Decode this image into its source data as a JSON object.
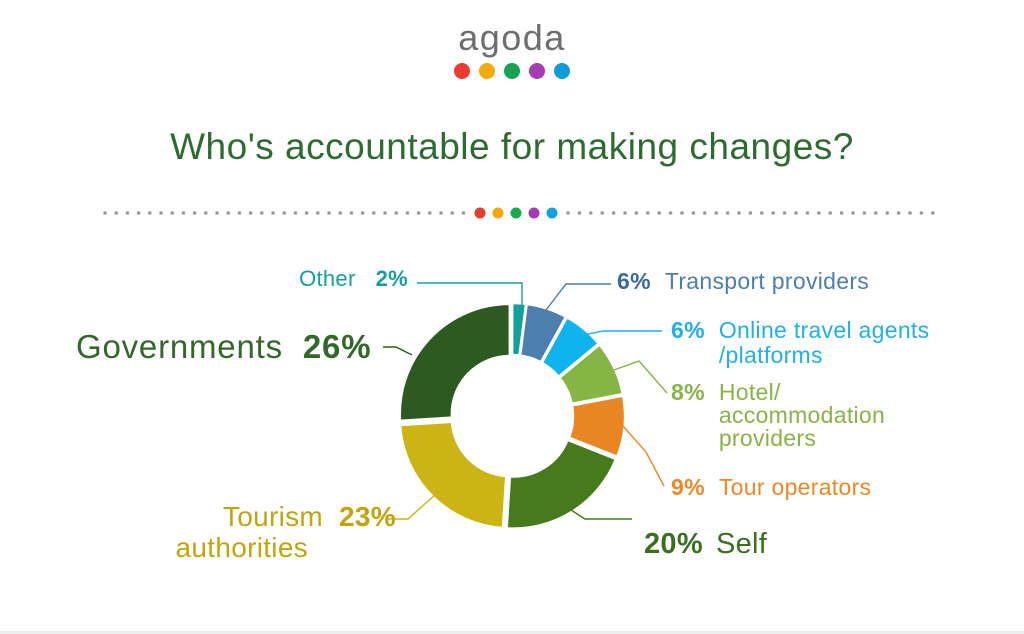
{
  "logo": {
    "text": "agoda",
    "dot_colors": [
      "#ee3b30",
      "#f6a90a",
      "#16a452",
      "#a43cb4",
      "#0c9cd8"
    ]
  },
  "title": "Who's accountable for making changes?",
  "divider": {
    "gray_color": "#9b9b9b",
    "accent_colors": [
      "#e93a2e",
      "#f5a80c",
      "#16a94e",
      "#a63ab2",
      "#12a3dc"
    ]
  },
  "chart_data": {
    "type": "pie",
    "subtype": "donut",
    "title": "Who's accountable for making changes?",
    "unit": "%",
    "start_angle_deg": 0,
    "direction": "clockwise",
    "inner_radius_ratio": 0.53,
    "segments": [
      {
        "id": "other",
        "label": "Other",
        "value": 2,
        "color": "#16a09a"
      },
      {
        "id": "transport",
        "label": "Transport providers",
        "value": 6,
        "color": "#4d7fae"
      },
      {
        "id": "online",
        "label": "Online travel agents/platforms",
        "value": 6,
        "color": "#0fb4ee"
      },
      {
        "id": "hotel",
        "label": "Hotel/accommodation providers",
        "value": 8,
        "color": "#86b445"
      },
      {
        "id": "tour",
        "label": "Tour operators",
        "value": 9,
        "color": "#e98624"
      },
      {
        "id": "self",
        "label": "Self",
        "value": 20,
        "color": "#47791d"
      },
      {
        "id": "tourism",
        "label": "Tourism authorities",
        "value": 23,
        "color": "#ccb414"
      },
      {
        "id": "governments",
        "label": "Governments",
        "value": 26,
        "color": "#2d5a20"
      }
    ]
  },
  "callouts": {
    "other": {
      "name": "Other",
      "pct": "2%"
    },
    "transport": {
      "pct": "6%",
      "name": "Transport providers"
    },
    "online": {
      "pct": "6%",
      "line1": "Online travel agents",
      "line2": "/platforms"
    },
    "hotel": {
      "pct": "8%",
      "line1": "Hotel/",
      "line2": "accommodation",
      "line3": "providers"
    },
    "tour": {
      "pct": "9%",
      "name": "Tour operators"
    },
    "self": {
      "pct": "20%",
      "name": "Self"
    },
    "tourism": {
      "line1": "Tourism",
      "pct": "23%",
      "line2": "authorities"
    },
    "governments": {
      "name": "Governments",
      "pct": "26%"
    }
  }
}
